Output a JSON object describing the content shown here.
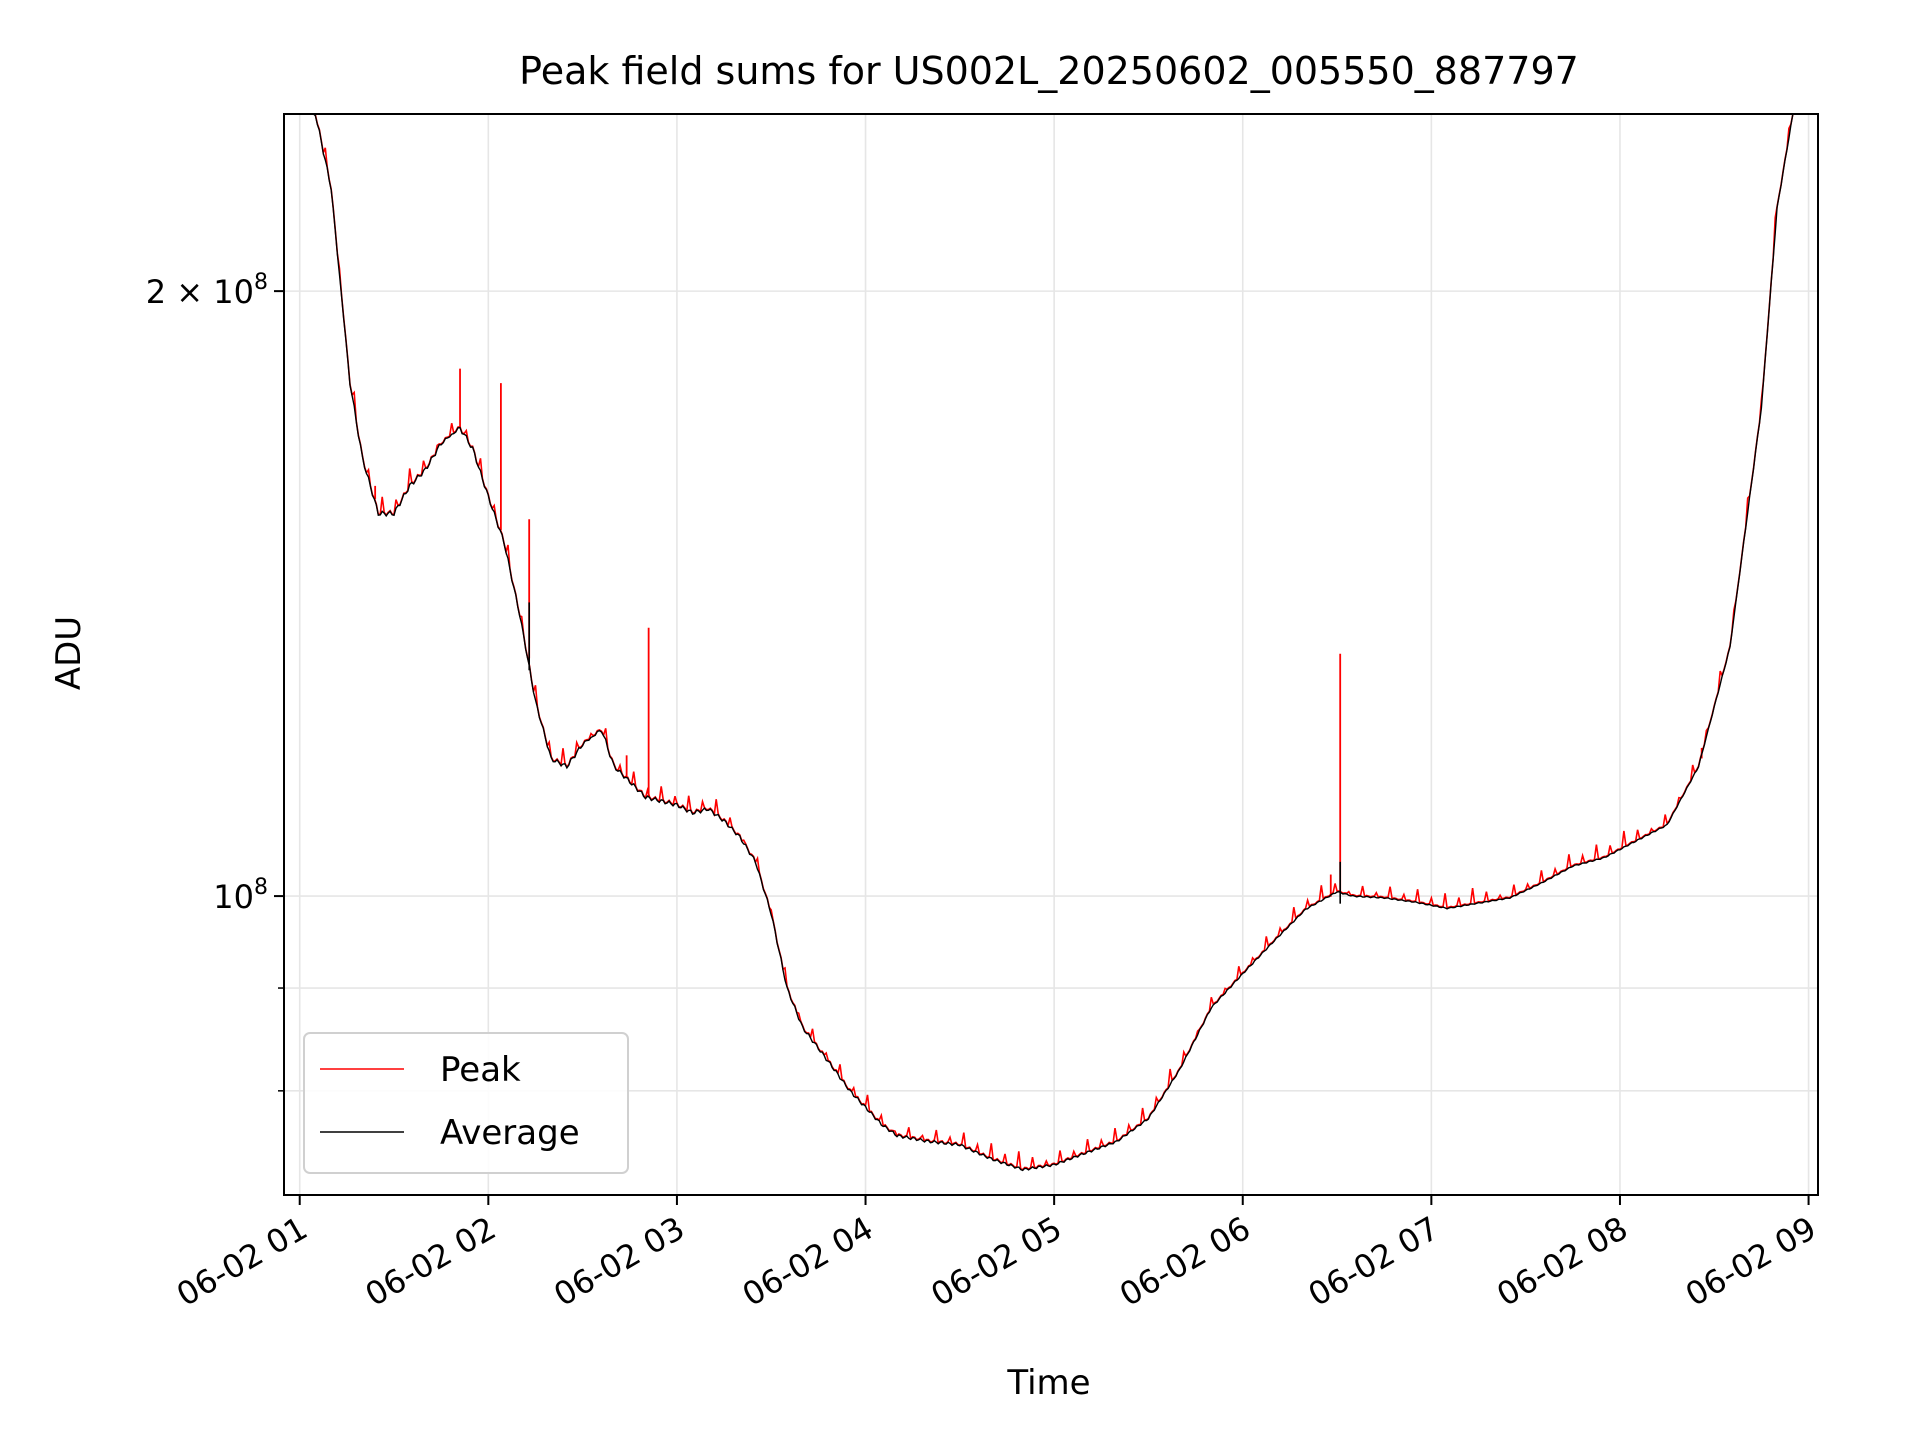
{
  "chart_data": {
    "type": "line",
    "title": "Peak field sums for US002L_20250602_005550_887797",
    "xlabel": "Time",
    "ylabel": "ADU",
    "y_scale": "log",
    "xlim": [
      "2025-06-02 00:55",
      "2025-06-02 09:03"
    ],
    "ylim": [
      71000000,
      245000000
    ],
    "grid": true,
    "legend_placement": "lower-left",
    "x_ticks": [
      "06-02 01",
      "06-02 02",
      "06-02 03",
      "06-02 04",
      "06-02 05",
      "06-02 06",
      "06-02 07",
      "06-02 08",
      "06-02 09"
    ],
    "x_tick_times": [
      "2025-06-02 01:00",
      "2025-06-02 02:00",
      "2025-06-02 03:00",
      "2025-06-02 04:00",
      "2025-06-02 05:00",
      "2025-06-02 06:00",
      "2025-06-02 07:00",
      "2025-06-02 08:00",
      "2025-06-02 09:00"
    ],
    "y_ticks": [
      {
        "value": 200000000,
        "label": "2 × 10",
        "exp": "8"
      },
      {
        "value": 100000000,
        "label": "10",
        "exp": "8"
      }
    ],
    "series": [
      {
        "name": "Average",
        "color": "#000000",
        "points": [
          [
            "2025-06-02 00:55",
            245000000
          ],
          [
            "2025-06-02 01:05",
            245000000
          ],
          [
            "2025-06-02 01:10",
            225000000
          ],
          [
            "2025-06-02 01:16",
            180000000
          ],
          [
            "2025-06-02 01:20",
            165000000
          ],
          [
            "2025-06-02 01:25",
            155000000
          ],
          [
            "2025-06-02 01:30",
            155000000
          ],
          [
            "2025-06-02 01:35",
            160000000
          ],
          [
            "2025-06-02 01:40",
            163000000
          ],
          [
            "2025-06-02 01:45",
            168000000
          ],
          [
            "2025-06-02 01:51",
            171000000
          ],
          [
            "2025-06-02 01:55",
            167000000
          ],
          [
            "2025-06-02 02:00",
            158000000
          ],
          [
            "2025-06-02 02:05",
            150000000
          ],
          [
            "2025-06-02 02:10",
            138000000
          ],
          [
            "2025-06-02 02:15",
            125000000
          ],
          [
            "2025-06-02 02:20",
            117000000
          ],
          [
            "2025-06-02 02:25",
            116000000
          ],
          [
            "2025-06-02 02:30",
            119000000
          ],
          [
            "2025-06-02 02:36",
            121000000
          ],
          [
            "2025-06-02 02:40",
            116000000
          ],
          [
            "2025-06-02 02:45",
            114000000
          ],
          [
            "2025-06-02 02:50",
            112000000
          ],
          [
            "2025-06-02 02:55",
            111500000
          ],
          [
            "2025-06-02 03:00",
            111000000
          ],
          [
            "2025-06-02 03:05",
            110000000
          ],
          [
            "2025-06-02 03:10",
            110500000
          ],
          [
            "2025-06-02 03:15",
            109000000
          ],
          [
            "2025-06-02 03:20",
            107000000
          ],
          [
            "2025-06-02 03:25",
            104000000
          ],
          [
            "2025-06-02 03:30",
            98000000
          ],
          [
            "2025-06-02 03:35",
            90000000
          ],
          [
            "2025-06-02 03:40",
            86000000
          ],
          [
            "2025-06-02 03:45",
            84000000
          ],
          [
            "2025-06-02 03:50",
            82000000
          ],
          [
            "2025-06-02 03:55",
            80000000
          ],
          [
            "2025-06-02 04:00",
            78500000
          ],
          [
            "2025-06-02 04:05",
            77000000
          ],
          [
            "2025-06-02 04:10",
            76000000
          ],
          [
            "2025-06-02 04:20",
            75500000
          ],
          [
            "2025-06-02 04:30",
            75200000
          ],
          [
            "2025-06-02 04:40",
            74000000
          ],
          [
            "2025-06-02 04:50",
            73100000
          ],
          [
            "2025-06-02 05:00",
            73500000
          ],
          [
            "2025-06-02 05:10",
            74500000
          ],
          [
            "2025-06-02 05:20",
            75500000
          ],
          [
            "2025-06-02 05:30",
            77500000
          ],
          [
            "2025-06-02 05:40",
            82000000
          ],
          [
            "2025-06-02 05:50",
            88000000
          ],
          [
            "2025-06-02 06:00",
            91500000
          ],
          [
            "2025-06-02 06:10",
            95000000
          ],
          [
            "2025-06-02 06:20",
            98500000
          ],
          [
            "2025-06-02 06:30",
            100500000
          ],
          [
            "2025-06-02 06:35",
            100000000
          ],
          [
            "2025-06-02 06:45",
            99800000
          ],
          [
            "2025-06-02 06:55",
            99300000
          ],
          [
            "2025-06-02 07:05",
            98600000
          ],
          [
            "2025-06-02 07:15",
            99200000
          ],
          [
            "2025-06-02 07:25",
            99800000
          ],
          [
            "2025-06-02 07:35",
            101500000
          ],
          [
            "2025-06-02 07:45",
            103500000
          ],
          [
            "2025-06-02 07:55",
            104500000
          ],
          [
            "2025-06-02 08:05",
            106500000
          ],
          [
            "2025-06-02 08:15",
            108500000
          ],
          [
            "2025-06-02 08:25",
            116000000
          ],
          [
            "2025-06-02 08:35",
            133000000
          ],
          [
            "2025-06-02 08:45",
            175000000
          ],
          [
            "2025-06-02 08:50",
            220000000
          ],
          [
            "2025-06-02 08:55",
            245000000
          ],
          [
            "2025-06-02 09:03",
            245000000
          ]
        ]
      },
      {
        "name": "Peak",
        "color": "#ff0000",
        "spikes": [
          [
            "2025-06-02 01:51",
            183000000
          ],
          [
            "2025-06-02 02:04",
            180000000
          ],
          [
            "2025-06-02 02:13",
            154000000
          ],
          [
            "2025-06-02 02:51",
            136000000
          ],
          [
            "2025-06-02 02:44",
            117500000
          ],
          [
            "2025-06-02 01:24",
            160000000
          ],
          [
            "2025-06-02 06:31",
            132000000
          ],
          [
            "2025-06-02 06:28",
            102500000
          ],
          [
            "2025-06-02 08:26",
            118500000
          ]
        ]
      }
    ]
  }
}
